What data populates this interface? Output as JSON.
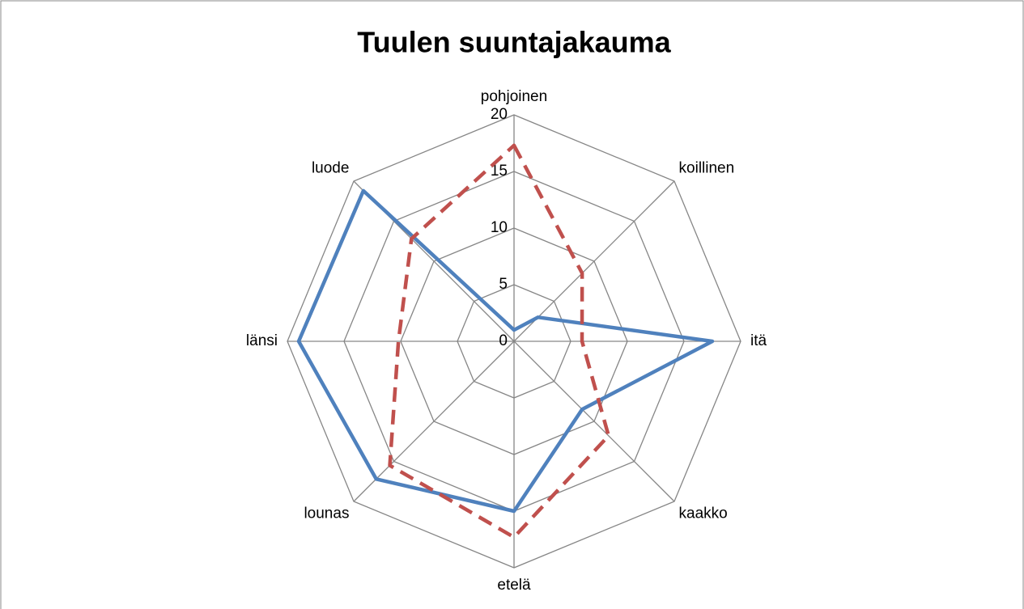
{
  "chart_data": {
    "type": "radar",
    "title": "Tuulen suuntajakauma",
    "categories": [
      "pohjoinen",
      "koillinen",
      "itä",
      "kaakko",
      "etelä",
      "lounas",
      "länsi",
      "luode"
    ],
    "series": [
      {
        "color": "#4f81bd",
        "dash": false,
        "values": [
          1,
          3,
          17.5,
          8.5,
          15,
          17.2,
          19,
          18.8
        ]
      },
      {
        "color": "#c0504d",
        "dash": true,
        "values": [
          17.3,
          8.5,
          6,
          11.8,
          17.3,
          15.5,
          10.2,
          12.8
        ]
      }
    ],
    "rlim": [
      0,
      20
    ],
    "rticks": [
      0,
      5,
      10,
      15,
      20
    ],
    "grid": true
  }
}
